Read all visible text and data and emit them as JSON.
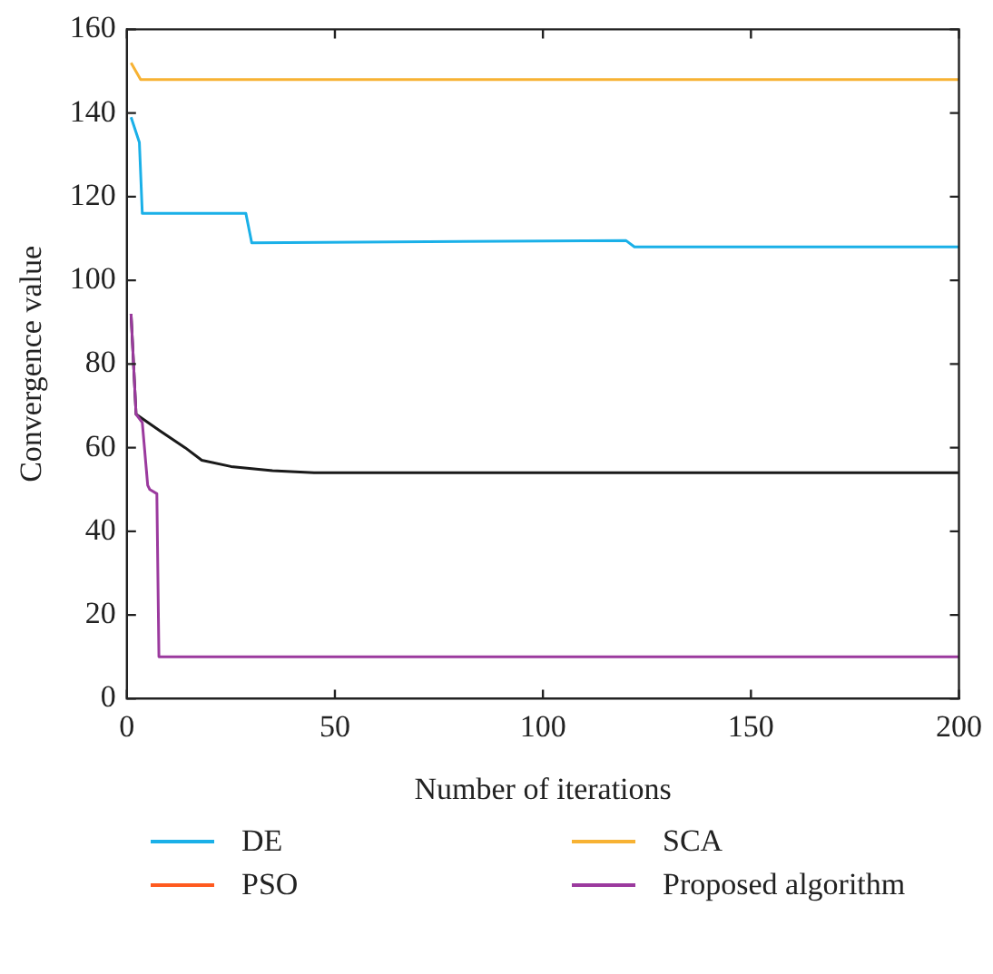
{
  "chart_data": {
    "type": "line",
    "xlabel": "Number of iterations",
    "ylabel": "Convergence value",
    "xlim": [
      0,
      200
    ],
    "xticks": [
      0,
      50,
      100,
      150,
      200
    ],
    "ylim": [
      0,
      160
    ],
    "yticks": [
      0,
      20,
      40,
      60,
      80,
      100,
      120,
      140,
      160
    ],
    "grid": false,
    "legend": "bottom",
    "marker": "none",
    "line_style": "solid",
    "series": [
      {
        "name": "DE",
        "color": "#1ab0e8",
        "x": [
          1,
          3,
          3.7,
          28.6,
          30,
          120,
          122,
          200
        ],
        "values": [
          139,
          133,
          116,
          116,
          109,
          109.5,
          108,
          108
        ]
      },
      {
        "name": "PSO",
        "color": "#ff5a1f"
      },
      {
        "name": "SCA",
        "color": "#f7b233",
        "x": [
          1,
          3.3,
          200
        ],
        "values": [
          152,
          148,
          148
        ]
      },
      {
        "name": "Proposed algorithm",
        "color": "#9b3a9e",
        "x": [
          1,
          2.2,
          3.7,
          5,
          5.5,
          7.2,
          7.7,
          200
        ],
        "values": [
          92,
          68,
          66,
          51,
          50,
          49,
          10,
          10
        ]
      },
      {
        "color": "#1a1a1a",
        "x": [
          1,
          2.2,
          8,
          14,
          18,
          25,
          35,
          45,
          200
        ],
        "values": [
          92,
          68,
          64,
          60,
          57,
          55.5,
          54.5,
          54,
          54
        ]
      }
    ]
  }
}
